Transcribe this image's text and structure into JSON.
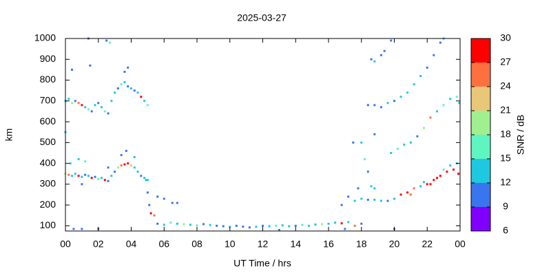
{
  "chart_data": {
    "type": "scatter",
    "title": "2025-03-27",
    "xlabel": "UT Time / hrs",
    "ylabel": "km",
    "xlim": [
      0,
      24
    ],
    "ylim": [
      75,
      1000
    ],
    "xticks": [
      {
        "value": 0,
        "label": "00"
      },
      {
        "value": 2,
        "label": "02"
      },
      {
        "value": 4,
        "label": "04"
      },
      {
        "value": 6,
        "label": "06"
      },
      {
        "value": 8,
        "label": "08"
      },
      10,
      12,
      14,
      16,
      18,
      20,
      22,
      {
        "value": 24,
        "label": "00"
      }
    ],
    "yticks": [
      100,
      200,
      300,
      400,
      500,
      600,
      700,
      800,
      900,
      1000
    ],
    "colorbar": {
      "label": "SNR / dB",
      "lim": [
        6,
        30
      ],
      "ticks": [
        6,
        9,
        12,
        15,
        18,
        21,
        24,
        27,
        30
      ],
      "colors": [
        "#8000ff",
        "#3a75f0",
        "#1ec8e0",
        "#5ff5c0",
        "#a0f090",
        "#e8c878",
        "#ff7040",
        "#ff0000"
      ]
    },
    "points": [
      [
        0,
        350,
        20
      ],
      [
        0.2,
        345,
        24
      ],
      [
        0.4,
        340,
        14
      ],
      [
        0.6,
        350,
        12
      ],
      [
        0.8,
        340,
        28
      ],
      [
        1.0,
        335,
        12
      ],
      [
        1.2,
        345,
        10
      ],
      [
        1.4,
        340,
        14
      ],
      [
        1.6,
        330,
        27
      ],
      [
        1.8,
        335,
        11
      ],
      [
        2.0,
        325,
        16
      ],
      [
        2.2,
        330,
        12
      ],
      [
        2.4,
        320,
        28
      ],
      [
        2.6,
        315,
        11
      ],
      [
        2.8,
        340,
        13
      ],
      [
        3.0,
        360,
        10
      ],
      [
        3.2,
        380,
        20
      ],
      [
        3.4,
        390,
        24
      ],
      [
        3.6,
        395,
        28
      ],
      [
        3.8,
        400,
        27
      ],
      [
        4.0,
        390,
        22
      ],
      [
        4.2,
        380,
        12
      ],
      [
        4.4,
        360,
        14
      ],
      [
        4.6,
        340,
        11
      ],
      [
        4.8,
        330,
        12
      ],
      [
        5.0,
        320,
        13
      ],
      [
        0.3,
        400,
        14
      ],
      [
        0.8,
        420,
        12
      ],
      [
        1.2,
        410,
        16
      ],
      [
        3.4,
        440,
        10
      ],
      [
        3.7,
        460,
        11
      ],
      [
        4.2,
        430,
        12
      ],
      [
        2.6,
        380,
        10
      ],
      [
        1.0,
        300,
        11
      ],
      [
        0,
        700,
        14
      ],
      [
        0.2,
        710,
        12
      ],
      [
        0.4,
        690,
        20
      ],
      [
        0.6,
        700,
        11
      ],
      [
        0.8,
        690,
        24
      ],
      [
        1.0,
        680,
        27
      ],
      [
        1.2,
        670,
        12
      ],
      [
        1.4,
        660,
        16
      ],
      [
        1.6,
        650,
        10
      ],
      [
        1.8,
        680,
        13
      ],
      [
        2.0,
        690,
        11
      ],
      [
        2.2,
        670,
        12
      ],
      [
        2.4,
        650,
        15
      ],
      [
        2.6,
        640,
        10
      ],
      [
        2.8,
        700,
        12
      ],
      [
        3.0,
        740,
        13
      ],
      [
        3.2,
        760,
        10
      ],
      [
        3.4,
        780,
        15
      ],
      [
        3.6,
        790,
        12
      ],
      [
        3.8,
        770,
        11
      ],
      [
        4.0,
        760,
        14
      ],
      [
        4.2,
        750,
        10
      ],
      [
        4.4,
        740,
        12
      ],
      [
        4.6,
        720,
        28
      ],
      [
        4.8,
        700,
        12
      ],
      [
        5.0,
        680,
        16
      ],
      [
        3.6,
        840,
        10
      ],
      [
        3.8,
        860,
        11
      ],
      [
        0.4,
        850,
        10
      ],
      [
        1.5,
        870,
        10
      ],
      [
        0,
        550,
        12
      ],
      [
        2.5,
        990,
        11
      ],
      [
        2.7,
        980,
        15
      ],
      [
        1.4,
        1000,
        10
      ],
      [
        5.0,
        260,
        11
      ],
      [
        5.1,
        200,
        10
      ],
      [
        5.2,
        160,
        27
      ],
      [
        5.4,
        150,
        24
      ],
      [
        5.6,
        240,
        10
      ],
      [
        6.0,
        230,
        11
      ],
      [
        6.5,
        210,
        10
      ],
      [
        6.8,
        210,
        10
      ],
      [
        4.9,
        320,
        13
      ],
      [
        5.6,
        110,
        11
      ],
      [
        6.0,
        105,
        12
      ],
      [
        6.4,
        115,
        16
      ],
      [
        6.8,
        110,
        14
      ],
      [
        7.2,
        108,
        20
      ],
      [
        7.6,
        105,
        12
      ],
      [
        8.0,
        102,
        16
      ],
      [
        8.4,
        108,
        11
      ],
      [
        8.8,
        104,
        13
      ],
      [
        9.2,
        100,
        10
      ],
      [
        9.6,
        98,
        11
      ],
      [
        10.0,
        95,
        12
      ],
      [
        10.4,
        100,
        10
      ],
      [
        10.8,
        96,
        11
      ],
      [
        11.2,
        92,
        10
      ],
      [
        11.6,
        95,
        12
      ],
      [
        12.0,
        100,
        10
      ],
      [
        12.4,
        98,
        13
      ],
      [
        12.8,
        100,
        16
      ],
      [
        13.2,
        102,
        12
      ],
      [
        13.6,
        98,
        14
      ],
      [
        14.0,
        100,
        11
      ],
      [
        14.4,
        104,
        15
      ],
      [
        14.8,
        100,
        12
      ],
      [
        15.2,
        106,
        13
      ],
      [
        15.6,
        108,
        20
      ],
      [
        16.0,
        110,
        12
      ],
      [
        16.4,
        115,
        14
      ],
      [
        16.8,
        112,
        27
      ],
      [
        17.2,
        118,
        12
      ],
      [
        17.6,
        100,
        24
      ],
      [
        18.0,
        110,
        10
      ],
      [
        1,
        85,
        10
      ],
      [
        2,
        85,
        11
      ],
      [
        13,
        80,
        10
      ],
      [
        17,
        85,
        10
      ],
      [
        20,
        85,
        10
      ],
      [
        0.5,
        85,
        10
      ],
      [
        16.8,
        200,
        11
      ],
      [
        17.2,
        240,
        10
      ],
      [
        17.6,
        220,
        14
      ],
      [
        18.0,
        230,
        12
      ],
      [
        18.4,
        225,
        10
      ],
      [
        18.8,
        225,
        12
      ],
      [
        19.2,
        220,
        13
      ],
      [
        19.6,
        220,
        11
      ],
      [
        20.0,
        230,
        12
      ],
      [
        20.4,
        250,
        27
      ],
      [
        20.8,
        260,
        28
      ],
      [
        21.2,
        280,
        24
      ],
      [
        21.6,
        290,
        14
      ],
      [
        22.0,
        300,
        27
      ],
      [
        22.4,
        320,
        29
      ],
      [
        22.8,
        340,
        28
      ],
      [
        23.2,
        360,
        29
      ],
      [
        23.6,
        370,
        28
      ],
      [
        23.9,
        350,
        27
      ],
      [
        21,
        250,
        24
      ],
      [
        22.2,
        300,
        29
      ],
      [
        22.6,
        330,
        28
      ],
      [
        23,
        370,
        15
      ],
      [
        23.4,
        390,
        12
      ],
      [
        23.8,
        400,
        13
      ],
      [
        21.8,
        310,
        13
      ],
      [
        17.5,
        500,
        10
      ],
      [
        18,
        500,
        12
      ],
      [
        18.2,
        420,
        16
      ],
      [
        18.4,
        360,
        11
      ],
      [
        18.6,
        290,
        14
      ],
      [
        18.8,
        280,
        12
      ],
      [
        17.8,
        280,
        10
      ],
      [
        19.8,
        450,
        12
      ],
      [
        20.2,
        470,
        15
      ],
      [
        20.6,
        490,
        14
      ],
      [
        21.0,
        500,
        12
      ],
      [
        21.4,
        530,
        11
      ],
      [
        21.8,
        570,
        18
      ],
      [
        22.2,
        620,
        24
      ],
      [
        22.6,
        650,
        14
      ],
      [
        23.0,
        680,
        16
      ],
      [
        23.4,
        710,
        13
      ],
      [
        23.8,
        720,
        16
      ],
      [
        23.95,
        690,
        14
      ],
      [
        18.8,
        680,
        11
      ],
      [
        19.2,
        670,
        10
      ],
      [
        19.6,
        690,
        12
      ],
      [
        20.0,
        700,
        11
      ],
      [
        20.4,
        720,
        12
      ],
      [
        20.8,
        740,
        13
      ],
      [
        21.2,
        780,
        12
      ],
      [
        21.6,
        820,
        14
      ],
      [
        22.0,
        860,
        10
      ],
      [
        22.4,
        920,
        11
      ],
      [
        22.8,
        980,
        10
      ],
      [
        23.0,
        1000,
        12
      ],
      [
        18.4,
        680,
        10
      ],
      [
        18.6,
        900,
        10
      ],
      [
        18.8,
        890,
        14
      ],
      [
        19.2,
        920,
        10
      ],
      [
        19.4,
        940,
        11
      ],
      [
        19.8,
        990,
        11
      ],
      [
        18.8,
        540,
        10
      ]
    ]
  }
}
